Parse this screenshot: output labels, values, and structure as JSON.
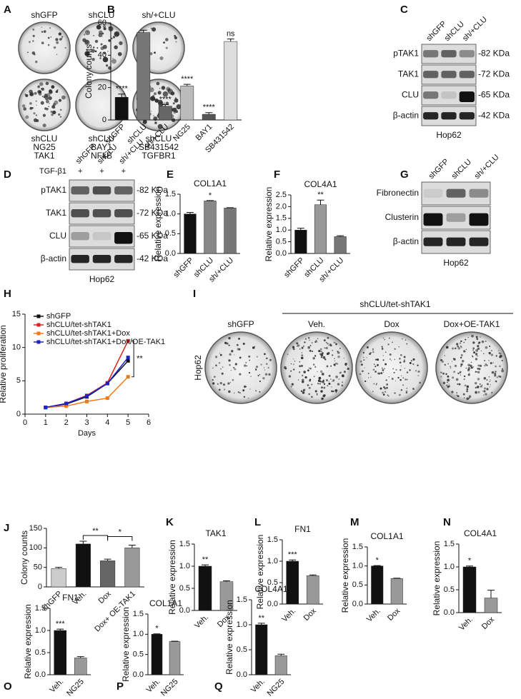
{
  "panel_letters": [
    "A",
    "B",
    "C",
    "D",
    "E",
    "F",
    "G",
    "H",
    "I",
    "J",
    "K",
    "L",
    "M",
    "N",
    "O",
    "P",
    "Q"
  ],
  "colony_a": {
    "top": [
      "shGFP",
      "shCLU",
      "sh/+CLU"
    ],
    "bottom": [
      [
        "shCLU",
        "NG25",
        "TAK1"
      ],
      [
        "shCLU",
        "BAY1",
        "NFkB"
      ],
      [
        "shCLU",
        "SB431542",
        "TGFBR1"
      ]
    ]
  },
  "colony_i": {
    "group": "shCLU/tet-shTAK1",
    "labels": [
      "shGFP",
      "Veh.",
      "Dox",
      "Dox+OE-TAK1"
    ],
    "cell_line": "Hop62"
  },
  "blots": [
    {
      "lanes": [
        "shGFP",
        "shCLU",
        "sh/+CLU"
      ],
      "rows": [
        "pTAK1",
        "TAK1",
        "CLU",
        "β-actin"
      ],
      "sizes": [
        "-82 KDa",
        "-72 KDa",
        "-65 KDa",
        "-42 KDa"
      ],
      "cell_line": "Hop62"
    },
    {
      "lanes": [
        "shGFP",
        "shCLU",
        "sh/+CLU"
      ],
      "treatment": {
        "name": "TGF-β1",
        "marks": [
          "+",
          "+",
          "+"
        ]
      },
      "rows": [
        "pTAK1",
        "TAK1",
        "CLU",
        "β-actin"
      ],
      "sizes": [
        "-82 KDa",
        "-72 KDa",
        "-65 KDa",
        "-42 KDa"
      ],
      "cell_line": "Hop62"
    },
    {
      "lanes": [
        "shGFP",
        "shCLU",
        "sh/+CLU"
      ],
      "rows": [
        "Fibronectin",
        "Clusterin",
        "β-actin"
      ],
      "cell_line": "Hop62"
    }
  ],
  "chart_data": [
    {
      "type": "bar",
      "y_label": "Colony counts",
      "categories": [
        "shGFP",
        "shCLU",
        "sh/+CLU",
        "NG25",
        "BAY1",
        "SB431542"
      ],
      "values": [
        14,
        54,
        8.5,
        21,
        3.5,
        48.5
      ],
      "errors": [
        2,
        1.5,
        1,
        1,
        1,
        1.5
      ],
      "value_annotations": [
        "****",
        null,
        "****",
        "****",
        "****",
        "ns"
      ],
      "colors": [
        "#111111",
        "#777777",
        "#666666",
        "#bbbbbb",
        "#555555",
        "#dddddd"
      ],
      "ylim": [
        0,
        60
      ],
      "yticks": [
        0,
        20,
        40,
        60
      ]
    },
    {
      "type": "bar",
      "title": "COL1A1",
      "y_label": "Relative expression",
      "categories": [
        "shGFP",
        "shCLU",
        "sh/+CLU"
      ],
      "values": [
        1.0,
        1.33,
        1.15
      ],
      "errors": [
        0.04,
        0.01,
        0.01
      ],
      "value_annotations": [
        null,
        "*",
        null
      ],
      "colors": [
        "#111111",
        "#888888",
        "#777777"
      ],
      "ylim": [
        0,
        1.5
      ],
      "yticks": [
        {
          "value": 0,
          "label": "0.0"
        },
        0.5,
        {
          "value": 1,
          "label": "1.0"
        },
        1.5
      ]
    },
    {
      "type": "bar",
      "title": "COL4A1",
      "y_label": "Relative expression",
      "categories": [
        "shGFP",
        "shCLU",
        "sh/+CLU"
      ],
      "values": [
        1.0,
        2.08,
        0.72
      ],
      "errors": [
        0.08,
        0.2,
        0.04
      ],
      "value_annotations": [
        null,
        "**",
        null
      ],
      "colors": [
        "#111111",
        "#999999",
        "#777777"
      ],
      "ylim": [
        0,
        2.5
      ],
      "yticks": [
        {
          "value": 0,
          "label": "0.0"
        },
        0.5,
        {
          "value": 1,
          "label": "1.0"
        },
        1.5,
        {
          "value": 2,
          "label": "2.0"
        },
        2.5
      ]
    },
    {
      "type": "line",
      "x_label": "Days",
      "y_label": "Relative proliferation",
      "x": [
        1,
        2,
        3,
        4,
        5
      ],
      "series": [
        {
          "name": "shGFP",
          "color": "#111111",
          "values": [
            1,
            1.5,
            2.6,
            4.6,
            8.0
          ]
        },
        {
          "name": "shCLU/tet-shTAK1",
          "color": "#e02020",
          "values": [
            1,
            1.6,
            2.8,
            4.7,
            11.0
          ]
        },
        {
          "name": "shCLU/tet-shTAK1+Dox",
          "color": "#f07818",
          "values": [
            1,
            1.2,
            1.9,
            2.4,
            5.6
          ]
        },
        {
          "name": "shCLU/tet-shTAK1+Dox/OE-TAK1",
          "color": "#1a22c8",
          "values": [
            1,
            1.6,
            2.7,
            4.6,
            8.5
          ]
        }
      ],
      "annotation": "**",
      "xlim": [
        0,
        6
      ],
      "xticks": [
        0,
        1,
        2,
        3,
        4,
        5,
        6
      ],
      "ylim": [
        0,
        15
      ],
      "yticks": [
        0,
        5,
        10,
        15
      ]
    },
    {
      "type": "bar",
      "y_label": "Colony counts",
      "categories": [
        "shGFP",
        "Veh.",
        "Dox",
        "Dox+ OE-TAK1"
      ],
      "values": [
        47,
        110,
        67,
        100
      ],
      "errors": [
        3,
        7,
        4,
        7
      ],
      "colors": [
        "#cccccc",
        "#111111",
        "#666666",
        "#999999"
      ],
      "comparisons": [
        {
          "groups": [
            "Veh.",
            "Dox"
          ],
          "label": "**"
        },
        {
          "groups": [
            "Dox",
            "Dox+ OE-TAK1"
          ],
          "label": "*"
        }
      ],
      "ylim": [
        0,
        150
      ],
      "yticks": [
        0,
        50,
        100,
        150
      ]
    },
    {
      "type": "bar",
      "title": "TAK1",
      "y_label": "Relative expression",
      "categories": [
        "Veh.",
        "Dox"
      ],
      "values": [
        1.0,
        0.65
      ],
      "errors": [
        0.03,
        0.02
      ],
      "value_annotations": [
        "**",
        null
      ],
      "colors": [
        "#111111",
        "#999999"
      ],
      "ylim": [
        0,
        1.5
      ],
      "yticks": [
        {
          "value": 0,
          "label": "0.0"
        },
        0.5,
        {
          "value": 1,
          "label": "1.0"
        },
        1.5
      ]
    },
    {
      "type": "bar",
      "title": "FN1",
      "y_label": "Relative expression",
      "categories": [
        "Veh.",
        "Dox"
      ],
      "values": [
        1.0,
        0.66
      ],
      "errors": [
        0.03,
        0.02
      ],
      "value_annotations": [
        "***",
        null
      ],
      "colors": [
        "#111111",
        "#999999"
      ],
      "ylim": [
        0,
        1.5
      ],
      "yticks": [
        {
          "value": 0,
          "label": "0.0"
        },
        0.5,
        {
          "value": 1,
          "label": "1.0"
        },
        1.5
      ]
    },
    {
      "type": "bar",
      "title": "COL1A1",
      "y_label": "Relative expression",
      "categories": [
        "Veh.",
        "Dox"
      ],
      "values": [
        1.0,
        0.67
      ],
      "errors": [
        0.01,
        0.01
      ],
      "value_annotations": [
        "*",
        null
      ],
      "colors": [
        "#111111",
        "#999999"
      ],
      "ylim": [
        0,
        1.5
      ],
      "yticks": [
        {
          "value": 0,
          "label": "0.0"
        },
        0.5,
        {
          "value": 1,
          "label": "1.0"
        },
        1.5
      ]
    },
    {
      "type": "bar",
      "title": "COL4A1",
      "y_label": "Relative expression",
      "categories": [
        "Veh.",
        "Dox"
      ],
      "values": [
        1.0,
        0.32
      ],
      "errors": [
        0.02,
        0.17
      ],
      "value_annotations": [
        "*",
        null
      ],
      "colors": [
        "#111111",
        "#999999"
      ],
      "ylim": [
        0,
        1.5
      ],
      "yticks": [
        {
          "value": 0,
          "label": "0.0"
        },
        0.5,
        {
          "value": 1,
          "label": "1.0"
        },
        1.5
      ]
    },
    {
      "type": "bar",
      "title": "FN1",
      "y_label": "Relative expression",
      "categories": [
        "Veh.",
        "NG25"
      ],
      "values": [
        1.0,
        0.38
      ],
      "errors": [
        0.03,
        0.03
      ],
      "value_annotations": [
        "***",
        null
      ],
      "colors": [
        "#111111",
        "#999999"
      ],
      "ylim": [
        0,
        1.5
      ],
      "yticks": [
        {
          "value": 0,
          "label": "0.0"
        },
        0.5,
        {
          "value": 1,
          "label": "1.0"
        },
        1.5
      ]
    },
    {
      "type": "bar",
      "title": "COL1A1",
      "y_label": "Relative expression",
      "categories": [
        "Veh.",
        "NG25"
      ],
      "values": [
        1.0,
        0.82
      ],
      "errors": [
        0.01,
        0.01
      ],
      "value_annotations": [
        "*",
        null
      ],
      "colors": [
        "#111111",
        "#999999"
      ],
      "ylim": [
        0,
        1.5
      ],
      "yticks": [
        {
          "value": 0,
          "label": "0.0"
        },
        0.5,
        {
          "value": 1,
          "label": "1.0"
        },
        1.5
      ]
    },
    {
      "type": "bar",
      "title": "COL4A1",
      "y_label": "Relative expression",
      "categories": [
        "Veh.",
        "NG25"
      ],
      "values": [
        1.0,
        0.38
      ],
      "errors": [
        0.03,
        0.03
      ],
      "value_annotations": [
        "**",
        null
      ],
      "colors": [
        "#111111",
        "#999999"
      ],
      "ylim": [
        0,
        1.5
      ],
      "yticks": [
        {
          "value": 0,
          "label": "0.0"
        },
        0.5,
        {
          "value": 1,
          "label": "1.0"
        },
        1.5
      ]
    }
  ]
}
